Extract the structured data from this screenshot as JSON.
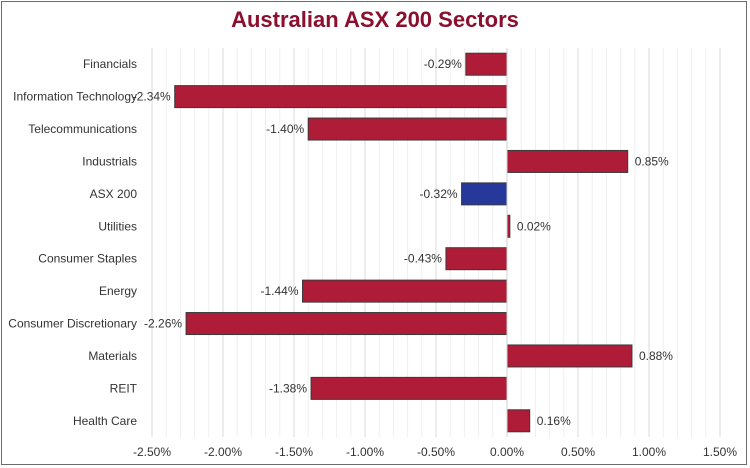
{
  "chart_data": {
    "type": "bar",
    "orientation": "horizontal",
    "title": "Australian ASX 200 Sectors",
    "categories": [
      "Financials",
      "Information Technology",
      "Telecommunications",
      "Industrials",
      "ASX 200",
      "Utilities",
      "Consumer Staples",
      "Energy",
      "Consumer Discretionary",
      "Materials",
      "REIT",
      "Health Care"
    ],
    "values": [
      -0.29,
      -2.34,
      -1.4,
      0.85,
      -0.32,
      0.02,
      -0.43,
      -1.44,
      -2.26,
      0.88,
      -1.38,
      0.16
    ],
    "data_labels": [
      "-0.29%",
      "-2.34%",
      "-1.40%",
      "0.85%",
      "-0.32%",
      "0.02%",
      "-0.43%",
      "-1.44%",
      "-2.26%",
      "0.88%",
      "-1.38%",
      "0.16%"
    ],
    "xlim": [
      -2.5,
      1.5
    ],
    "xticks": [
      "-2.50%",
      "-2.00%",
      "-1.50%",
      "-1.00%",
      "-0.50%",
      "0.00%",
      "0.50%",
      "1.00%",
      "1.50%"
    ],
    "xlabel": "",
    "ylabel": "",
    "grid": true,
    "colors": {
      "bar": "#ae1c37",
      "highlight": "#26399a",
      "title": "#8b0f2e"
    },
    "highlight_category": "ASX 200"
  }
}
